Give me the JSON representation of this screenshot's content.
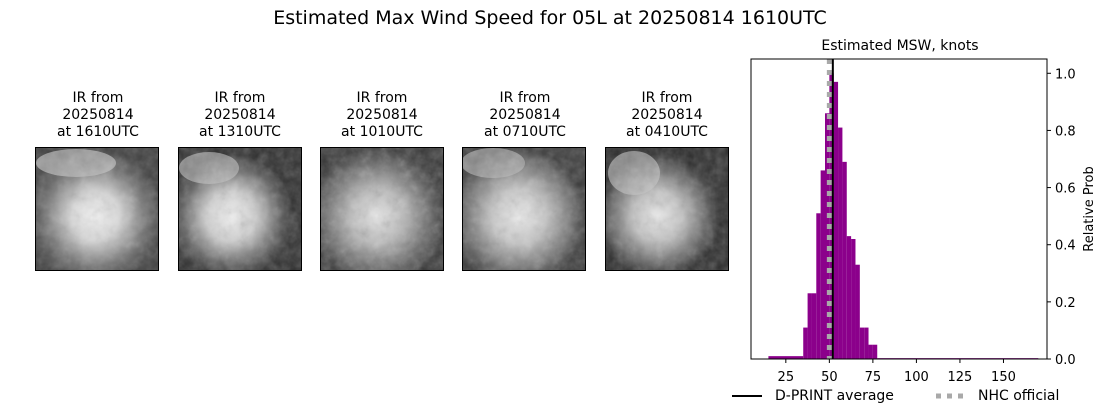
{
  "title": "Estimated Max Wind Speed for 05L at 20250814 1610UTC",
  "ir_panels": [
    {
      "line1": "IR from",
      "line2": "20250814",
      "line3": "at 1610UTC"
    },
    {
      "line1": "IR from",
      "line2": "20250814",
      "line3": "at 1310UTC"
    },
    {
      "line1": "IR from",
      "line2": "20250814",
      "line3": "at 1010UTC"
    },
    {
      "line1": "IR from",
      "line2": "20250814",
      "line3": "at 0710UTC"
    },
    {
      "line1": "IR from",
      "line2": "20250814",
      "line3": "at 0410UTC"
    }
  ],
  "colors": {
    "bars": "#8b008b",
    "dprint_line": "#000000",
    "nhc_line": "#a9a9a9"
  },
  "legend": {
    "dprint_label": "D-PRINT average",
    "nhc_label": "NHC official"
  },
  "chart_data": {
    "type": "bar",
    "title": "Estimated MSW, knots",
    "xlabel": "",
    "ylabel": "Relative Prob",
    "xlim": [
      5,
      175
    ],
    "ylim": [
      0,
      1.05
    ],
    "xticks": [
      25,
      50,
      75,
      100,
      125,
      150
    ],
    "yticks": [
      0.0,
      0.2,
      0.4,
      0.6,
      0.8,
      1.0
    ],
    "ytick_labels": [
      "0.0",
      "0.2",
      "0.4",
      "0.6",
      "0.8",
      "1.0"
    ],
    "y_axis_side": "right",
    "bin_width": 2.5,
    "bins": [
      {
        "x": 15,
        "w": 20,
        "y": 0.01
      },
      {
        "x": 35,
        "y": 0.11
      },
      {
        "x": 37.5,
        "y": 0.23
      },
      {
        "x": 40,
        "y": 0.23
      },
      {
        "x": 42.5,
        "y": 0.51
      },
      {
        "x": 45,
        "y": 0.66
      },
      {
        "x": 47.5,
        "y": 0.86
      },
      {
        "x": 50,
        "y": 1.0
      },
      {
        "x": 52.5,
        "y": 0.97
      },
      {
        "x": 55,
        "y": 0.81
      },
      {
        "x": 57.5,
        "y": 0.69
      },
      {
        "x": 60,
        "y": 0.43
      },
      {
        "x": 62.5,
        "y": 0.42
      },
      {
        "x": 65,
        "y": 0.33
      },
      {
        "x": 67.5,
        "y": 0.11
      },
      {
        "x": 70,
        "y": 0.11
      },
      {
        "x": 72.5,
        "y": 0.05
      },
      {
        "x": 75,
        "y": 0.05
      },
      {
        "x": 77.5,
        "w": 92.5,
        "y": 0.003
      }
    ],
    "dprint_average": 52,
    "nhc_official": 50
  }
}
